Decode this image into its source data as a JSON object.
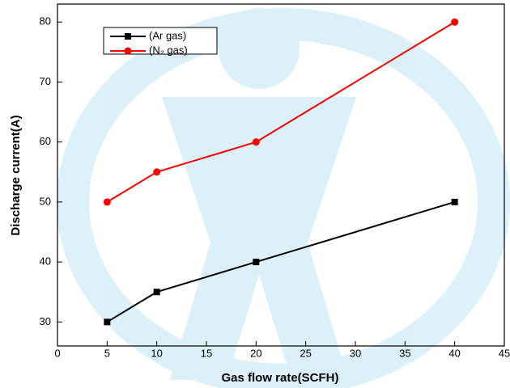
{
  "chart_data": {
    "type": "line",
    "xlabel": "Gas flow rate(SCFH)",
    "ylabel": "Discharge current(A)",
    "x": [
      5,
      10,
      20,
      40
    ],
    "series": [
      {
        "name": "(Ar gas)",
        "color": "#000000",
        "marker": "square",
        "values": [
          30,
          35,
          40,
          50
        ]
      },
      {
        "name": "(N₂ gas)",
        "color": "#ff0000",
        "marker": "circle",
        "values": [
          50,
          55,
          60,
          80
        ]
      }
    ],
    "xlim": [
      0,
      45
    ],
    "xticks": [
      0,
      5,
      10,
      15,
      20,
      25,
      30,
      35,
      40,
      45
    ],
    "ylim": [
      26,
      83
    ],
    "yticks": [
      30,
      40,
      50,
      60,
      70,
      80
    ],
    "grid": false,
    "legend": "upper left"
  }
}
